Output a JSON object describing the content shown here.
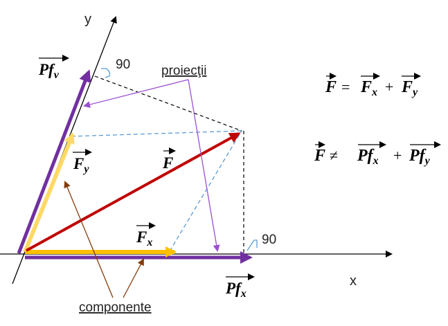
{
  "axes": {
    "x_label": "x",
    "y_label": "y"
  },
  "angles": {
    "top": "90",
    "bottom": "90"
  },
  "labels": {
    "projections": "proiecţii",
    "components": "componente"
  },
  "vectors": {
    "F": "F",
    "Fx": {
      "base": "F",
      "sub": "x"
    },
    "Fy": {
      "base": "F",
      "sub": "y"
    },
    "Pfv": {
      "base": "Pf",
      "sub": "v"
    },
    "Pfx": {
      "base": "Pf",
      "sub": "x"
    }
  },
  "equations": {
    "eq1": {
      "lhs": "F",
      "op1": "=",
      "t1": "F",
      "t1_sub": "x",
      "plus": "+",
      "t2": "F",
      "t2_sub": "y"
    },
    "eq2": {
      "lhs": "F",
      "op1": "≠",
      "t1": "Pf",
      "t1_sub": "x",
      "plus": "+",
      "t2": "Pf",
      "t2_sub": "y"
    }
  },
  "colors": {
    "force": "#c00000",
    "component": "#ffc000",
    "component_light": "#ffd966",
    "projection": "#7030a0",
    "label_arrow_proj": "#9b4fd0",
    "label_arrow_comp": "#843c0c",
    "helper_dashed_blue": "#5b9bd5",
    "helper_dashed_black": "#000000"
  }
}
